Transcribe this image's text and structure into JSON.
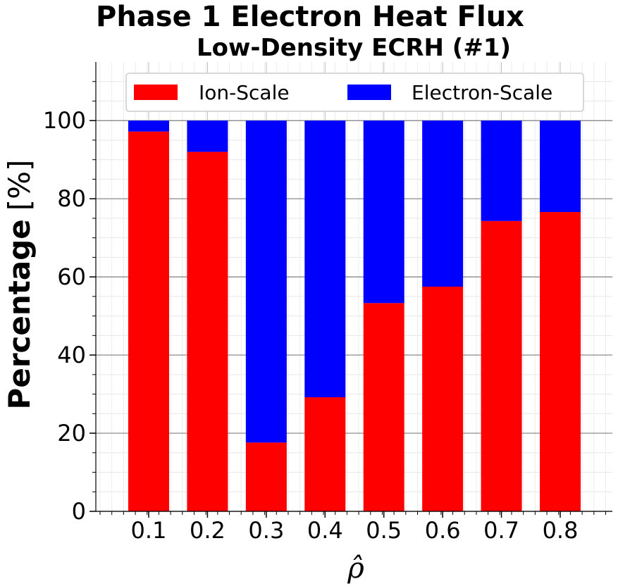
{
  "chart_data": {
    "type": "bar",
    "stacked": true,
    "title": "Phase 1 Electron Heat Flux",
    "subtitle": "Low-Density ECRH (#1)",
    "xlabel": "ρ̂",
    "ylabel": "Percentage",
    "ylabel_unit": "[%]",
    "categories": [
      "0.1",
      "0.2",
      "0.3",
      "0.4",
      "0.5",
      "0.6",
      "0.7",
      "0.8"
    ],
    "series": [
      {
        "name": "Ion-Scale",
        "color": "#ff0000",
        "values": [
          97.2,
          92.0,
          17.6,
          29.2,
          53.3,
          57.5,
          74.3,
          76.6
        ]
      },
      {
        "name": "Electron-Scale",
        "color": "#0000ff",
        "values": [
          2.8,
          8.0,
          82.4,
          70.8,
          46.7,
          42.5,
          25.7,
          23.4
        ]
      }
    ],
    "ylim": [
      0,
      115
    ],
    "yticks": [
      "0",
      "20",
      "40",
      "60",
      "80",
      "100"
    ],
    "grid": true,
    "legend": "top-center"
  }
}
